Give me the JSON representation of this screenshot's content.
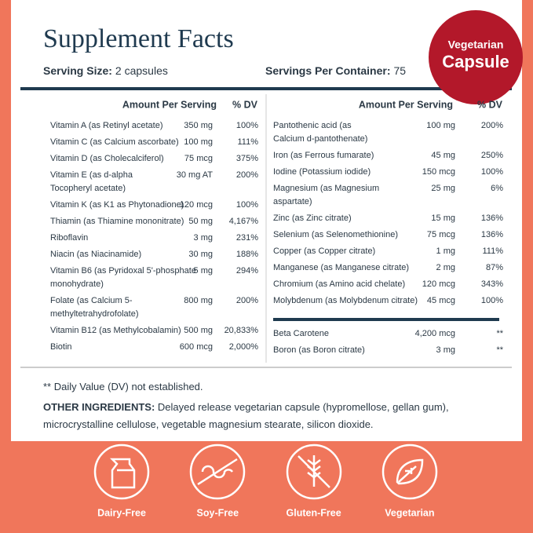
{
  "header": {
    "title": "Supplement Facts",
    "serving_size_label": "Serving Size:",
    "serving_size": "2 capsules",
    "servings_label": "Servings Per Container:",
    "servings": "75",
    "badge": [
      "Vegetarian",
      "Capsule"
    ]
  },
  "left_table": {
    "headers": [
      "Amount Per Serving",
      "% DV"
    ],
    "rows": [
      {
        "name": [
          "Vitamin A (as Retinyl acetate)"
        ],
        "amount": "350 mg",
        "dv": "100%"
      },
      {
        "name": [
          "Vitamin C (as Calcium ascorbate)"
        ],
        "amount": "100 mg",
        "dv": "111%"
      },
      {
        "name": [
          "Vitamin D (as Cholecalciferol)"
        ],
        "amount": "75 mcg",
        "dv": "375%"
      },
      {
        "name": [
          "Vitamin E (as d-alpha",
          "Tocopheryl acetate)"
        ],
        "amount": "30 mg AT",
        "dv": "200%"
      },
      {
        "name": [
          "Vitamin K (as K1 as Phytonadione)"
        ],
        "amount": "120 mcg",
        "dv": "100%"
      },
      {
        "name": [
          "Thiamin (as Thiamine mononitrate)"
        ],
        "amount": "50 mg",
        "dv": "4,167%"
      },
      {
        "name": [
          "Riboflavin"
        ],
        "amount": "3 mg",
        "dv": "231%"
      },
      {
        "name": [
          "Niacin (as Niacinamide)"
        ],
        "amount": "30 mg",
        "dv": "188%"
      },
      {
        "name": [
          "Vitamin B6 (as Pyridoxal 5'-phosphate",
          "monohydrate)"
        ],
        "amount": "5 mg",
        "dv": "294%"
      },
      {
        "name": [
          "Folate (as Calcium 5-",
          "methyltetrahydrofolate)"
        ],
        "amount": "800 mg",
        "dv": "200%"
      },
      {
        "name": [
          "Vitamin B12 (as Methylcobalamin)"
        ],
        "amount": "500 mg",
        "dv": "20,833%"
      },
      {
        "name": [
          "Biotin"
        ],
        "amount": "600 mcg",
        "dv": "2,000%"
      }
    ]
  },
  "right_table": {
    "headers": [
      "Amount Per Serving",
      "% DV"
    ],
    "rows": [
      {
        "name": [
          "Pantothenic acid (as",
          "Calcium d-pantothenate)"
        ],
        "amount": "100 mg",
        "dv": "200%"
      },
      {
        "name": [
          "Iron (as Ferrous fumarate)"
        ],
        "amount": "45 mg",
        "dv": "250%"
      },
      {
        "name": [
          "Iodine (Potassium iodide)"
        ],
        "amount": "150 mcg",
        "dv": "100%"
      },
      {
        "name": [
          "Magnesium (as Magnesium",
          "aspartate)"
        ],
        "amount": "25 mg",
        "dv": "6%"
      },
      {
        "name": [
          "Zinc (as Zinc citrate)"
        ],
        "amount": "15 mg",
        "dv": "136%"
      },
      {
        "name": [
          "Selenium (as Selenomethionine)"
        ],
        "amount": "75 mcg",
        "dv": "136%"
      },
      {
        "name": [
          "Copper (as Copper citrate)"
        ],
        "amount": "1 mg",
        "dv": "111%"
      },
      {
        "name": [
          "Manganese (as Manganese citrate)"
        ],
        "amount": "2 mg",
        "dv": "87%"
      },
      {
        "name": [
          "Chromium (as Amino acid chelate)"
        ],
        "amount": "120 mcg",
        "dv": "343%"
      },
      {
        "name": [
          "Molybdenum (as Molybdenum citrate)"
        ],
        "amount": "45 mcg",
        "dv": "100%"
      }
    ],
    "extra_rows": [
      {
        "name": [
          "Beta Carotene"
        ],
        "amount": "4,200 mcg",
        "dv": "**"
      },
      {
        "name": [
          "Boron (as Boron citrate)"
        ],
        "amount": "3 mg",
        "dv": "**"
      }
    ]
  },
  "footnote": "** Daily Value (DV) not established.",
  "other_ingredients": {
    "label": "OTHER INGREDIENTS:",
    "text": "Delayed release vegetarian capsule (hypromellose, gellan gum), microcrystalline cellulose, vegetable magnesium stearate, silicon dioxide."
  },
  "icons": [
    "Dairy-Free",
    "Soy-Free",
    "Gluten-Free",
    "Vegetarian"
  ]
}
